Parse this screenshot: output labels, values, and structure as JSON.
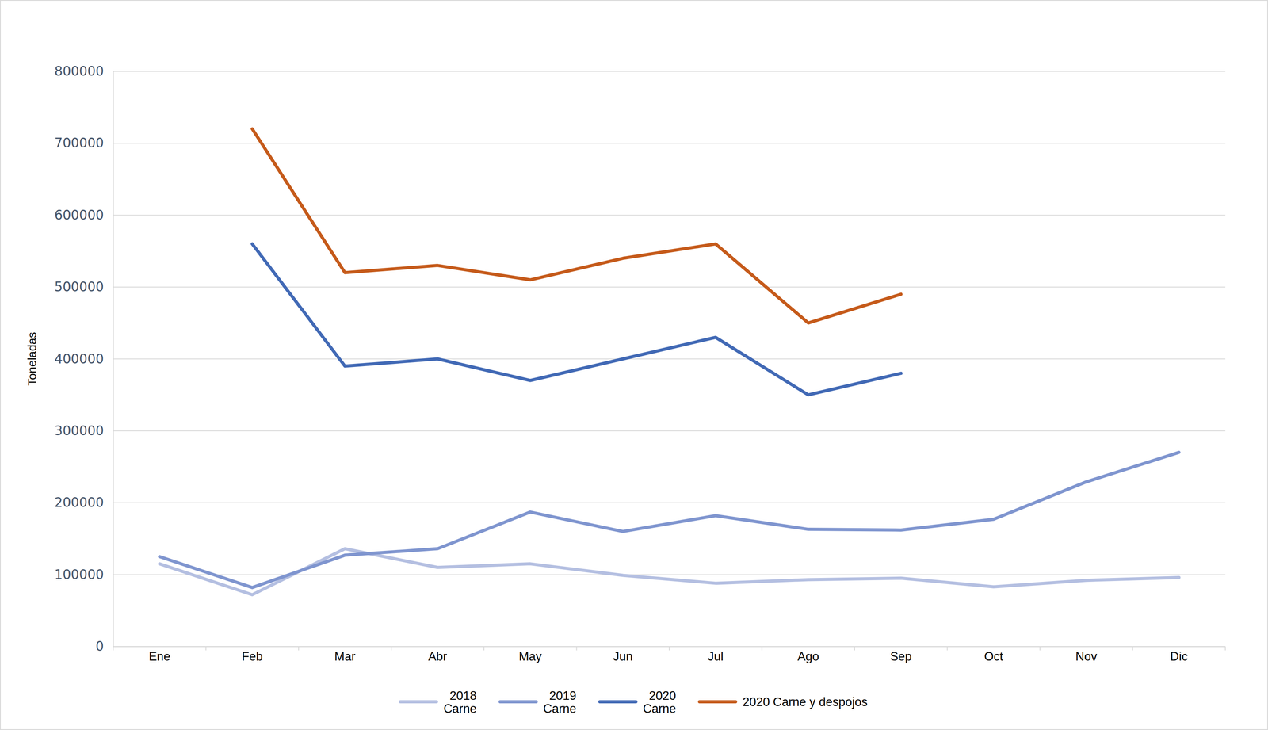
{
  "chart_data": {
    "type": "line",
    "y_label": "Toneladas",
    "categories": [
      "Ene",
      "Feb",
      "Mar",
      "Abr",
      "May",
      "Jun",
      "Jul",
      "Ago",
      "Sep",
      "Oct",
      "Nov",
      "Dic"
    ],
    "series": [
      {
        "name": "2018 Carne",
        "color": "#b4bfe1",
        "values": [
          115000,
          72000,
          136000,
          110000,
          115000,
          99000,
          88000,
          93000,
          95000,
          83000,
          92000,
          96000
        ]
      },
      {
        "name": "2019 Carne",
        "color": "#7f95cf",
        "values": [
          125000,
          82000,
          127000,
          136000,
          187000,
          160000,
          182000,
          163000,
          162000,
          177000,
          229000,
          270000
        ]
      },
      {
        "name": "2020 Carne",
        "color": "#4169b5",
        "values": [
          null,
          560000,
          390000,
          400000,
          370000,
          400000,
          430000,
          350000,
          380000,
          null,
          null,
          null
        ]
      },
      {
        "name": "2020 Carne y despojos",
        "color": "#c55a1a",
        "values": [
          null,
          720000,
          520000,
          530000,
          510000,
          540000,
          560000,
          450000,
          490000,
          null,
          null,
          null
        ]
      }
    ],
    "ylim": [
      0,
      800000
    ],
    "yticks": [
      0,
      100000,
      200000,
      300000,
      400000,
      500000,
      600000,
      700000,
      800000
    ],
    "grid": true,
    "legend": "bottom"
  }
}
